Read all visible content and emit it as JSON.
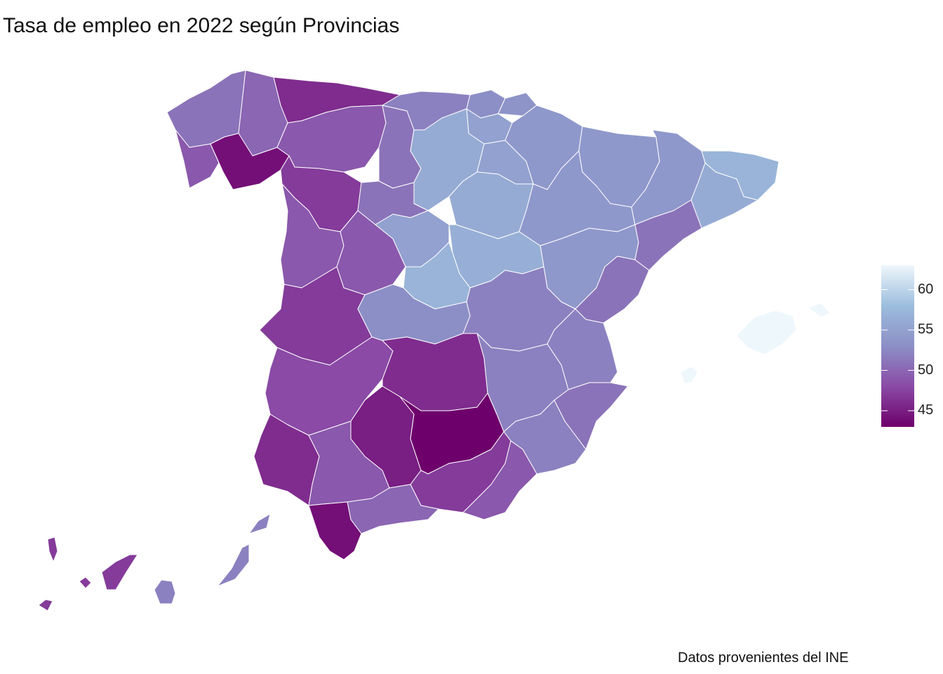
{
  "title": "Tasa de empleo en 2022 según Provincias",
  "caption": "Datos provenientes del INE",
  "scale": {
    "min": 43,
    "max": 63,
    "colors": [
      "#6e006b",
      "#8a4aa6",
      "#8c8fc6",
      "#9cbddd",
      "#eef7fb"
    ],
    "ticks": [
      "45",
      "50",
      "55",
      "60"
    ]
  },
  "regions": [
    {
      "id": "coruna",
      "v": 51
    },
    {
      "id": "lugo",
      "v": 50
    },
    {
      "id": "asturias",
      "v": 46
    },
    {
      "id": "pontevedra",
      "v": 49
    },
    {
      "id": "ourense",
      "v": 44
    },
    {
      "id": "leon",
      "v": 49
    },
    {
      "id": "zamora",
      "v": 47
    },
    {
      "id": "palencia",
      "v": 51
    },
    {
      "id": "cantabria",
      "v": 52
    },
    {
      "id": "bizkaia",
      "v": 53
    },
    {
      "id": "gipuzkoa",
      "v": 53.5
    },
    {
      "id": "alava",
      "v": 55
    },
    {
      "id": "navarra",
      "v": 54
    },
    {
      "id": "burgos",
      "v": 56
    },
    {
      "id": "larioja",
      "v": 55
    },
    {
      "id": "valladolid",
      "v": 51
    },
    {
      "id": "soria",
      "v": 56
    },
    {
      "id": "huesca",
      "v": 54
    },
    {
      "id": "zaragoza",
      "v": 54
    },
    {
      "id": "lleida",
      "v": 54
    },
    {
      "id": "girona",
      "v": 57
    },
    {
      "id": "barcelona",
      "v": 56
    },
    {
      "id": "tarragona",
      "v": 51
    },
    {
      "id": "teruel",
      "v": 54
    },
    {
      "id": "salamanca",
      "v": 49
    },
    {
      "id": "avila",
      "v": 49
    },
    {
      "id": "segovia",
      "v": 55
    },
    {
      "id": "guadalajara",
      "v": 56.5
    },
    {
      "id": "madrid",
      "v": 57
    },
    {
      "id": "caceres",
      "v": 47
    },
    {
      "id": "toledo",
      "v": 53
    },
    {
      "id": "cuenca",
      "v": 52
    },
    {
      "id": "castellon",
      "v": 51
    },
    {
      "id": "valencia",
      "v": 52
    },
    {
      "id": "badajoz",
      "v": 48
    },
    {
      "id": "ciudadreal",
      "v": 46
    },
    {
      "id": "albacete",
      "v": 52
    },
    {
      "id": "alicante",
      "v": 51
    },
    {
      "id": "huelva",
      "v": 46
    },
    {
      "id": "sevilla",
      "v": 49
    },
    {
      "id": "cordoba",
      "v": 45
    },
    {
      "id": "jaen",
      "v": 43
    },
    {
      "id": "murcia",
      "v": 52
    },
    {
      "id": "granada",
      "v": 47
    },
    {
      "id": "almeria",
      "v": 49
    },
    {
      "id": "malaga",
      "v": 50
    },
    {
      "id": "cadiz",
      "v": 44
    },
    {
      "id": "mallorca",
      "v": 63
    },
    {
      "id": "menorca",
      "v": 63
    },
    {
      "id": "ibiza",
      "v": 63
    },
    {
      "id": "lapalma",
      "v": 47
    },
    {
      "id": "tenerife",
      "v": 47
    },
    {
      "id": "gomera",
      "v": 47
    },
    {
      "id": "hierro",
      "v": 47
    },
    {
      "id": "grancanaria",
      "v": 52
    },
    {
      "id": "fuerteventura",
      "v": 52
    },
    {
      "id": "lanzarote",
      "v": 52
    }
  ]
}
